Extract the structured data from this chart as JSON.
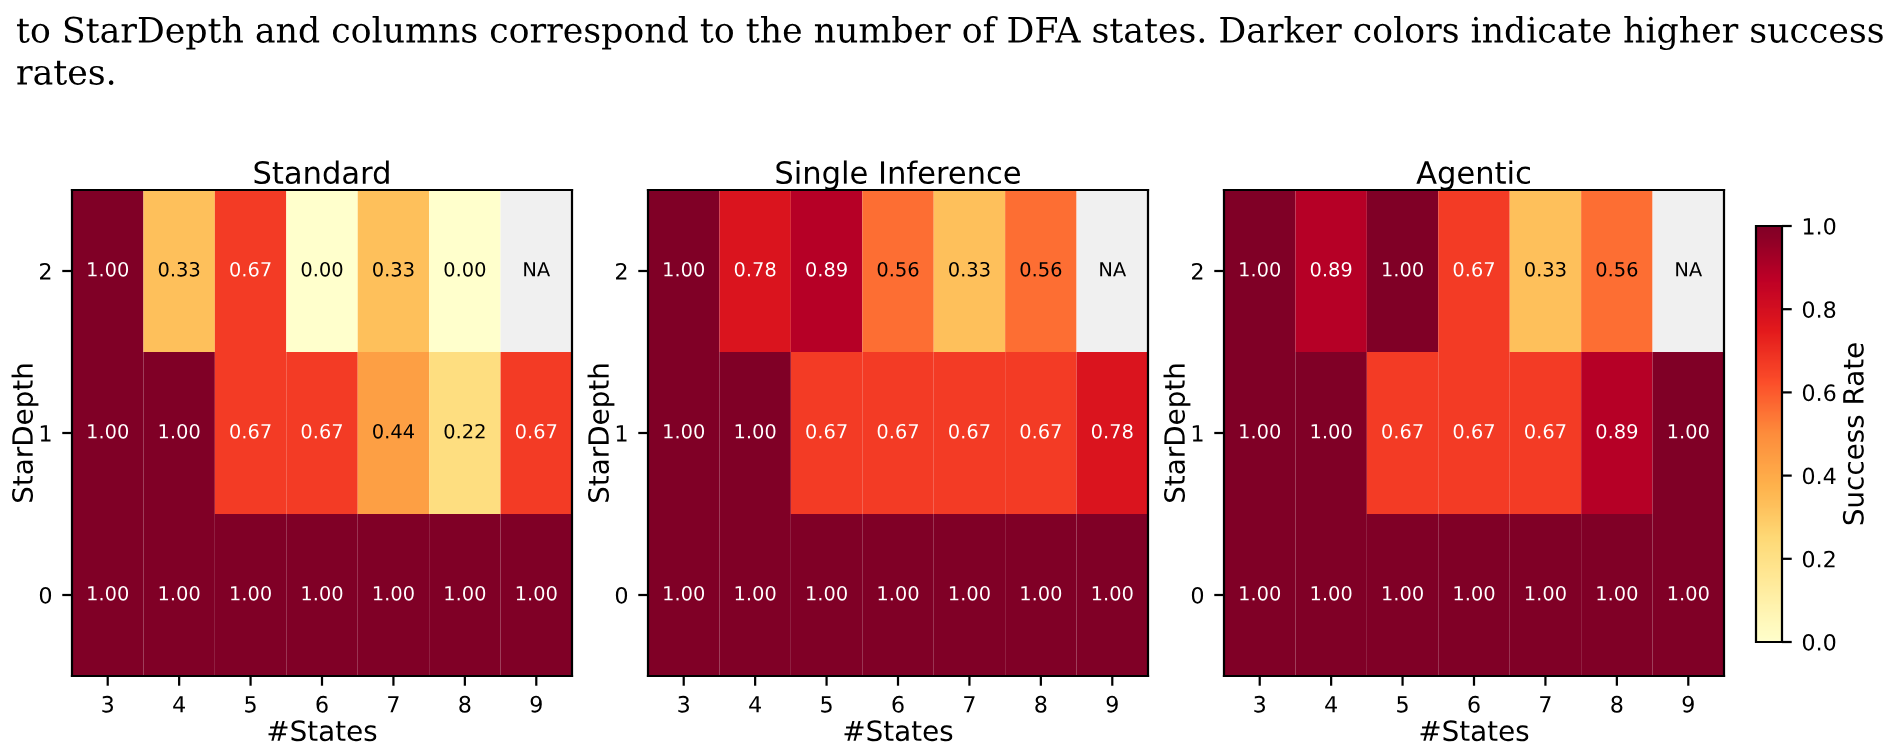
{
  "chart_data": [
    {
      "type": "heatmap",
      "title": "Standard",
      "xlabel": "#States",
      "ylabel": "StarDepth",
      "annotations": [
        "to StarDepth and columns correspond to the number of DFA states. Darker colors indicate higher success rates."
      ],
      "categories": [
        "3",
        "4",
        "5",
        "6",
        "7",
        "8",
        "9"
      ],
      "y_categories": [
        "2",
        "1",
        "0"
      ],
      "cells": [
        [
          1.0,
          0.33,
          0.67,
          0.0,
          0.33,
          0.0,
          null
        ],
        [
          1.0,
          1.0,
          0.67,
          0.67,
          0.44,
          0.22,
          0.67
        ],
        [
          1.0,
          1.0,
          1.0,
          1.0,
          1.0,
          1.0,
          1.0
        ]
      ],
      "cell_labels": [
        [
          "1.00",
          "0.33",
          "0.67",
          "0.00",
          "0.33",
          "0.00",
          "NA"
        ],
        [
          "1.00",
          "1.00",
          "0.67",
          "0.67",
          "0.44",
          "0.22",
          "0.67"
        ],
        [
          "1.00",
          "1.00",
          "1.00",
          "1.00",
          "1.00",
          "1.00",
          "1.00"
        ]
      ]
    },
    {
      "type": "heatmap",
      "title": "Single Inference",
      "xlabel": "#States",
      "ylabel": "StarDepth",
      "categories": [
        "3",
        "4",
        "5",
        "6",
        "7",
        "8",
        "9"
      ],
      "y_categories": [
        "2",
        "1",
        "0"
      ],
      "cells": [
        [
          1.0,
          0.78,
          0.89,
          0.56,
          0.33,
          0.56,
          null
        ],
        [
          1.0,
          1.0,
          0.67,
          0.67,
          0.67,
          0.67,
          0.78
        ],
        [
          1.0,
          1.0,
          1.0,
          1.0,
          1.0,
          1.0,
          1.0
        ]
      ],
      "cell_labels": [
        [
          "1.00",
          "0.78",
          "0.89",
          "0.56",
          "0.33",
          "0.56",
          "NA"
        ],
        [
          "1.00",
          "1.00",
          "0.67",
          "0.67",
          "0.67",
          "0.67",
          "0.78"
        ],
        [
          "1.00",
          "1.00",
          "1.00",
          "1.00",
          "1.00",
          "1.00",
          "1.00"
        ]
      ]
    },
    {
      "type": "heatmap",
      "title": "Agentic",
      "xlabel": "#States",
      "ylabel": "StarDepth",
      "clabel": "Success Rate",
      "categories": [
        "3",
        "4",
        "5",
        "6",
        "7",
        "8",
        "9"
      ],
      "y_categories": [
        "2",
        "1",
        "0"
      ],
      "cells": [
        [
          1.0,
          0.89,
          1.0,
          0.67,
          0.33,
          0.56,
          null
        ],
        [
          1.0,
          1.0,
          0.67,
          0.67,
          0.67,
          0.89,
          1.0
        ],
        [
          1.0,
          1.0,
          1.0,
          1.0,
          1.0,
          1.0,
          1.0
        ]
      ],
      "cell_labels": [
        [
          "1.00",
          "0.89",
          "1.00",
          "0.67",
          "0.33",
          "0.56",
          "NA"
        ],
        [
          "1.00",
          "1.00",
          "0.67",
          "0.67",
          "0.67",
          "0.89",
          "1.00"
        ],
        [
          "1.00",
          "1.00",
          "1.00",
          "1.00",
          "1.00",
          "1.00",
          "1.00"
        ]
      ],
      "clim": [
        0.0,
        1.0
      ],
      "cticks": [
        {
          "value": 0.0,
          "label": "0.0"
        },
        {
          "value": 0.2,
          "label": "0.2"
        },
        {
          "value": 0.4,
          "label": "0.4"
        },
        {
          "value": 0.6,
          "label": "0.6"
        },
        {
          "value": 0.8,
          "label": "0.8"
        },
        {
          "value": 1.0,
          "label": "1.0"
        }
      ]
    }
  ]
}
